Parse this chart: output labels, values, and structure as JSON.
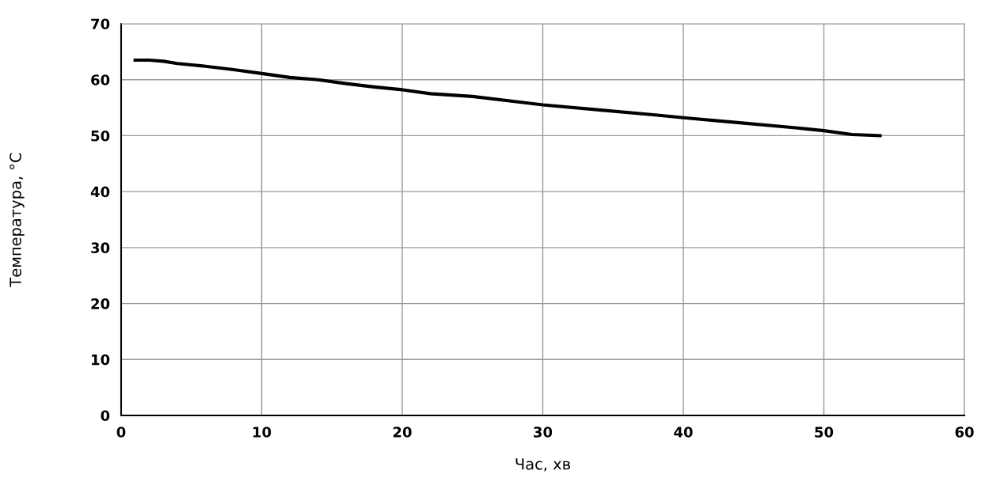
{
  "chart_data": {
    "type": "line",
    "xlabel": "Час, хв",
    "ylabel": "Температура, °C",
    "series": [
      {
        "color": "#000000",
        "x": [
          1,
          2,
          3,
          4,
          6,
          8,
          10,
          12,
          14,
          16,
          18,
          20,
          22,
          25,
          28,
          30,
          34,
          38,
          40,
          44,
          48,
          50,
          52,
          54
        ],
        "values": [
          63.5,
          63.5,
          63.3,
          62.9,
          62.4,
          61.8,
          61.1,
          60.4,
          60.0,
          59.3,
          58.7,
          58.2,
          57.5,
          57.0,
          56.1,
          55.5,
          54.6,
          53.7,
          53.2,
          52.3,
          51.4,
          50.9,
          50.2,
          50.0
        ]
      }
    ],
    "xlim": [
      0,
      60
    ],
    "xticks": [
      0,
      10,
      20,
      30,
      40,
      50,
      60
    ],
    "ylim": [
      0,
      70
    ],
    "yticks": [
      0,
      10,
      20,
      30,
      40,
      50,
      60,
      70
    ],
    "grid": true,
    "marker": "none",
    "line_style": "solid"
  }
}
